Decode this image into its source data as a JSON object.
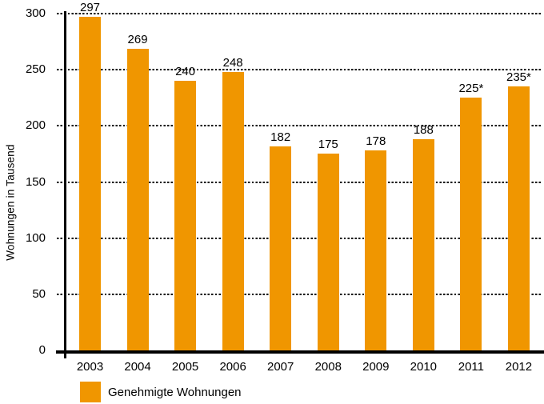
{
  "chart_data": {
    "type": "bar",
    "title": "",
    "xlabel": "",
    "ylabel": "Wohnungen in Tausend",
    "ylim": [
      0,
      300
    ],
    "yticks": [
      0,
      50,
      100,
      150,
      200,
      250,
      300
    ],
    "grid": "horizontal dotted black lines at each 50 step, behind bars",
    "categories": [
      "2003",
      "2004",
      "2005",
      "2006",
      "2007",
      "2008",
      "2009",
      "2010",
      "2011",
      "2012"
    ],
    "values": [
      297,
      269,
      240,
      248,
      182,
      175,
      178,
      188,
      225,
      235
    ],
    "value_labels": [
      "297",
      "269",
      "240",
      "248",
      "182",
      "175",
      "178",
      "188",
      "225*",
      "235*"
    ],
    "legend": "Genehmigte Wohnungen",
    "legend_position": "bottom-left",
    "bar_color": "#F09600",
    "axis_color": "#000000",
    "text_color": "#000000",
    "background_color": "#FFFFFF"
  }
}
